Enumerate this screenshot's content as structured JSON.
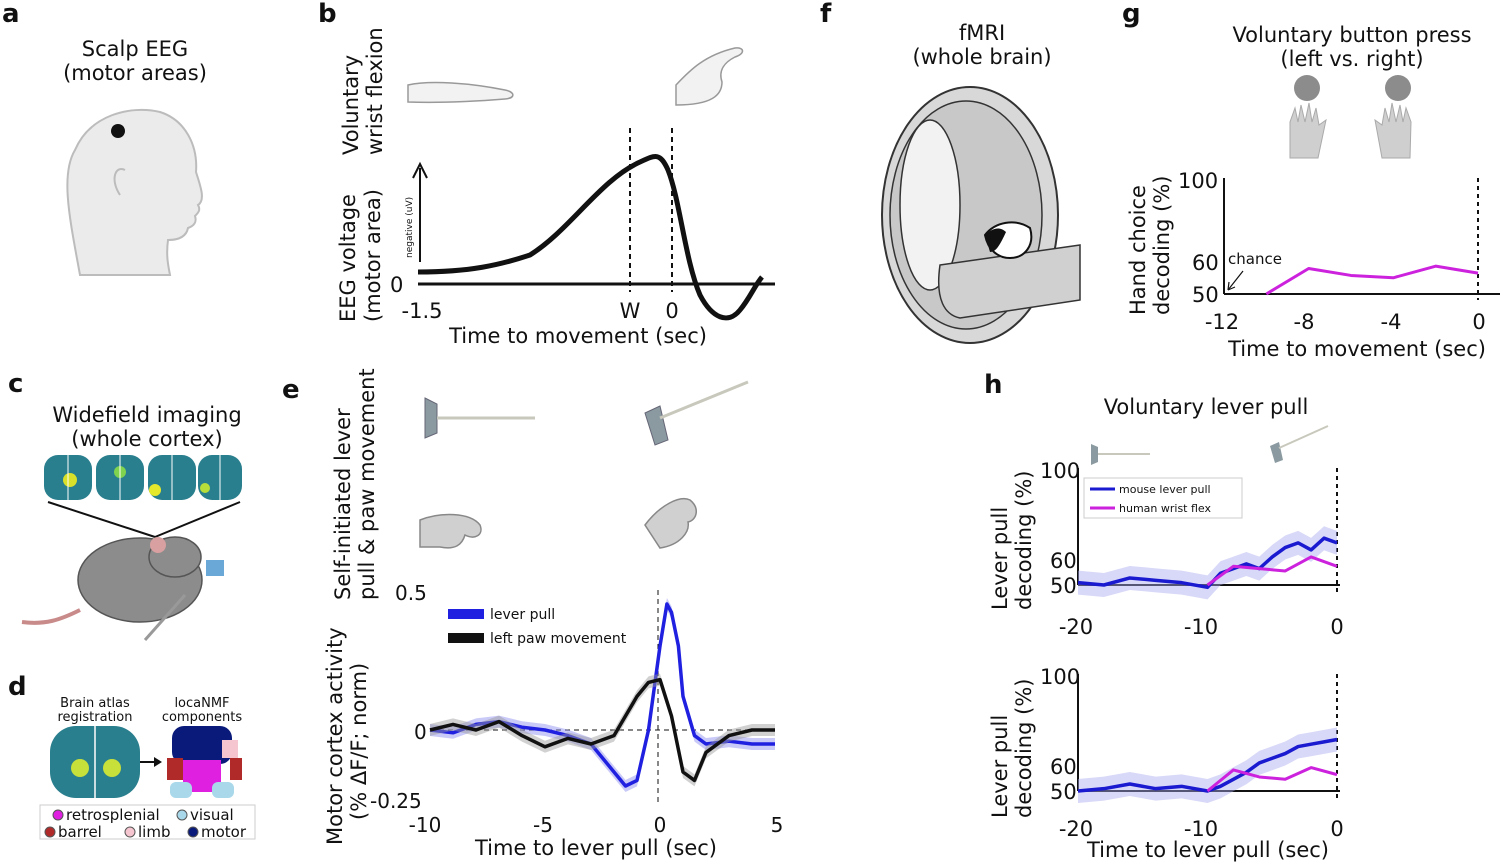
{
  "panels": {
    "a": {
      "letter": "a",
      "title_line1": "Scalp EEG",
      "title_line2": "(motor areas)"
    },
    "b": {
      "letter": "b",
      "side_label_line1": "Voluntary",
      "side_label_line2": "wrist flexion",
      "ylabel_line1": "EEG voltage",
      "ylabel_line2": "(motor area)",
      "arrow_label": "negative (uV)",
      "y_zero": "0",
      "xticks": [
        "-1.5",
        "W",
        "0"
      ],
      "xlabel": "Time to movement (sec)"
    },
    "c": {
      "letter": "c",
      "title_line1": "Widefield imaging",
      "title_line2": "(whole cortex)"
    },
    "d": {
      "letter": "d",
      "left_title_line1": "Brain atlas",
      "left_title_line2": "registration",
      "right_title_line1": "locaNMF",
      "right_title_line2": "components",
      "legend": [
        {
          "label": "retrosplenial",
          "color": "#e020e0"
        },
        {
          "label": "visual",
          "color": "#a8d8ea"
        },
        {
          "label": "barrel",
          "color": "#b02a2a"
        },
        {
          "label": "limb",
          "color": "#f6c6d0"
        },
        {
          "label": "motor",
          "color": "#0a1a7a"
        }
      ]
    },
    "e": {
      "letter": "e",
      "side_label_line1": "Self-initiated lever",
      "side_label_line2": "pull & paw movement",
      "ylabel_line1": "Motor cortex activity",
      "ylabel_line2": "(% ΔF/F; norm)",
      "xlabel": "Time to lever pull (sec)",
      "yticks": [
        "0.5",
        "0",
        "-0.25"
      ],
      "xticks": [
        "-10",
        "-5",
        "0",
        "5"
      ],
      "legend": [
        {
          "label": "lever pull",
          "color": "#2020e0"
        },
        {
          "label": "left paw movement",
          "color": "#111111"
        }
      ]
    },
    "f": {
      "letter": "f",
      "title_line1": "fMRI",
      "title_line2": "(whole brain)"
    },
    "g": {
      "letter": "g",
      "title_line1": "Voluntary button press",
      "title_line2": "(left vs. right)",
      "ylabel_line1": "Hand choice",
      "ylabel_line2": "decoding (%)",
      "xlabel": "Time to movement (sec)",
      "yticks": [
        "100",
        "60",
        "50"
      ],
      "xticks": [
        "-12",
        "-8",
        "-4",
        "0"
      ],
      "annotation": "chance"
    },
    "h": {
      "letter": "h",
      "title": "Voluntary lever pull",
      "ylabel_line1": "Lever pull",
      "ylabel_line2": "decoding (%)",
      "xlabel": "Time to lever pull (sec)",
      "yticks": [
        "100",
        "60",
        "50"
      ],
      "xticks": [
        "-20",
        "-10",
        "0"
      ],
      "legend": [
        {
          "label": "mouse lever pull",
          "color": "#1a1ad0"
        },
        {
          "label": "human wrist flex",
          "color": "#cc22dd"
        }
      ]
    }
  },
  "chart_data": [
    {
      "panel": "b",
      "type": "line",
      "xlabel": "Time to movement (sec)",
      "ylabel": "EEG voltage (motor area)",
      "xlim": [
        -1.5,
        0.6
      ],
      "series": [
        {
          "x": [
            -1.5,
            -1.2,
            -1.0,
            -0.8,
            -0.6,
            -0.4,
            -0.2,
            -0.1,
            0.0,
            0.1,
            0.2,
            0.3,
            0.45,
            0.5
          ],
          "y": [
            0.1,
            0.12,
            0.25,
            0.45,
            0.7,
            0.88,
            0.98,
            0.95,
            0.6,
            -0.05,
            -0.25,
            -0.28,
            -0.1,
            0.05
          ]
        }
      ],
      "markers": [
        "W",
        "0"
      ]
    },
    {
      "panel": "e",
      "type": "line",
      "xlabel": "Time to lever pull (sec)",
      "ylabel": "Motor cortex activity (% ΔF/F; norm)",
      "xlim": [
        -10,
        5
      ],
      "ylim": [
        -0.25,
        0.5
      ],
      "series": [
        {
          "name": "lever pull",
          "x": [
            -10,
            -9,
            -8,
            -7,
            -6,
            -5,
            -4,
            -3,
            -2,
            -1.5,
            -1,
            -0.5,
            0,
            0.3,
            0.5,
            0.8,
            1,
            1.5,
            2,
            3,
            4,
            5
          ],
          "y": [
            0.0,
            -0.01,
            0.02,
            0.03,
            0.01,
            0.0,
            -0.02,
            -0.05,
            -0.15,
            -0.2,
            -0.18,
            0.0,
            0.3,
            0.45,
            0.42,
            0.3,
            0.12,
            -0.02,
            -0.05,
            -0.04,
            -0.05,
            -0.05
          ]
        },
        {
          "name": "left paw movement",
          "x": [
            -10,
            -9,
            -8,
            -7,
            -6,
            -5,
            -4,
            -3,
            -2,
            -1.5,
            -1,
            -0.5,
            0,
            0.5,
            1,
            1.5,
            2,
            3,
            4,
            5
          ],
          "y": [
            0.0,
            0.02,
            0.0,
            0.03,
            -0.02,
            -0.06,
            -0.03,
            -0.05,
            -0.02,
            0.05,
            0.12,
            0.17,
            0.18,
            0.05,
            -0.15,
            -0.18,
            -0.08,
            -0.02,
            0.0,
            0.0
          ]
        }
      ]
    },
    {
      "panel": "g",
      "type": "line",
      "xlabel": "Time to movement (sec)",
      "ylabel": "Hand choice decoding (%)",
      "xlim": [
        -12,
        0
      ],
      "ylim": [
        50,
        100
      ],
      "series": [
        {
          "x": [
            -10,
            -8,
            -6,
            -4,
            -2,
            0
          ],
          "y": [
            50,
            61,
            58,
            57,
            62,
            59
          ]
        }
      ]
    },
    {
      "panel": "h-top",
      "type": "line",
      "xlabel": "Time to lever pull (sec)",
      "ylabel": "Lever pull decoding (%)",
      "xlim": [
        -20,
        0
      ],
      "ylim": [
        50,
        100
      ],
      "series": [
        {
          "name": "mouse lever pull",
          "x": [
            -20,
            -18,
            -16,
            -14,
            -12,
            -10,
            -9,
            -8,
            -7,
            -6,
            -5,
            -4,
            -3,
            -2,
            -1,
            0
          ],
          "y": [
            51,
            50,
            53,
            52,
            51,
            49,
            55,
            57,
            59,
            57,
            62,
            66,
            68,
            65,
            70,
            68
          ]
        },
        {
          "name": "human wrist flex",
          "x": [
            -10,
            -8,
            -6,
            -4,
            -2,
            0
          ],
          "y": [
            50,
            58,
            57,
            56,
            62,
            58
          ]
        }
      ]
    },
    {
      "panel": "h-bottom",
      "type": "line",
      "xlabel": "Time to lever pull (sec)",
      "ylabel": "Lever pull decoding (%)",
      "xlim": [
        -20,
        0
      ],
      "ylim": [
        50,
        100
      ],
      "series": [
        {
          "name": "mouse lever pull",
          "x": [
            -20,
            -18,
            -16,
            -14,
            -12,
            -10,
            -9,
            -8,
            -7,
            -6,
            -5,
            -4,
            -3,
            -2,
            -1,
            0
          ],
          "y": [
            50,
            51,
            53,
            51,
            52,
            50,
            52,
            55,
            58,
            62,
            64,
            66,
            69,
            70,
            71,
            72
          ]
        },
        {
          "name": "human wrist flex",
          "x": [
            -10,
            -8,
            -6,
            -4,
            -2,
            0
          ],
          "y": [
            50,
            59,
            56,
            55,
            60,
            57
          ]
        }
      ]
    }
  ]
}
